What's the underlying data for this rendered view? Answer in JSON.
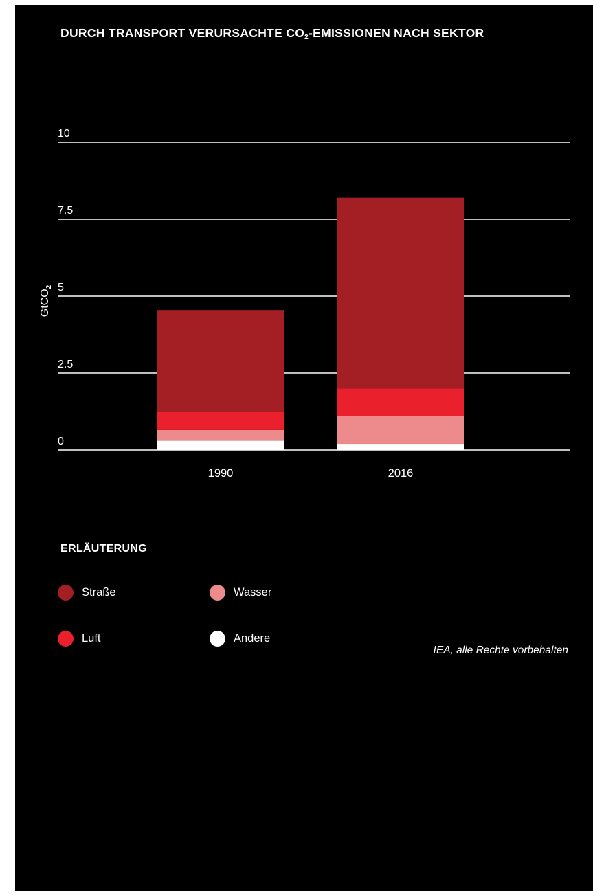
{
  "title": {
    "main": "DURCH TRANSPORT VERURSACHTE CO",
    "sub": "2",
    "rest": "-EMISSIONEN NACH SEKTOR"
  },
  "legend": {
    "title": "ERLÄUTERUNG",
    "items": [
      {
        "label": "Straße",
        "color": "#a31f24"
      },
      {
        "label": "Wasser",
        "color": "#ec8a8c"
      },
      {
        "label": "Luft",
        "color": "#ea212d"
      },
      {
        "label": "Andere",
        "color": "#ffffff"
      }
    ]
  },
  "source": "IEA, alle Rechte vorbehalten",
  "chart_data": {
    "type": "bar",
    "stacked": true,
    "title": "DURCH TRANSPORT VERURSACHTE CO2-EMISSIONEN NACH SEKTOR",
    "xlabel": "",
    "ylabel": "GtCO2",
    "ylabel_main": "GtCO",
    "ylabel_sub": "2",
    "ylim": [
      0,
      10
    ],
    "yticks": [
      0,
      2.5,
      5,
      7.5,
      10
    ],
    "ytick_labels": [
      "0",
      "2.5",
      "5",
      "7.5",
      "10"
    ],
    "grid": true,
    "legend_position": "below",
    "categories": [
      "1990",
      "2016"
    ],
    "series": [
      {
        "name": "Andere",
        "color": "#ffffff",
        "values": [
          0.3,
          0.2
        ]
      },
      {
        "name": "Wasser",
        "color": "#ec8a8c",
        "values": [
          0.35,
          0.9
        ]
      },
      {
        "name": "Luft",
        "color": "#ea212d",
        "values": [
          0.6,
          0.9
        ]
      },
      {
        "name": "Straße",
        "color": "#a31f24",
        "values": [
          3.3,
          6.2
        ]
      }
    ]
  }
}
